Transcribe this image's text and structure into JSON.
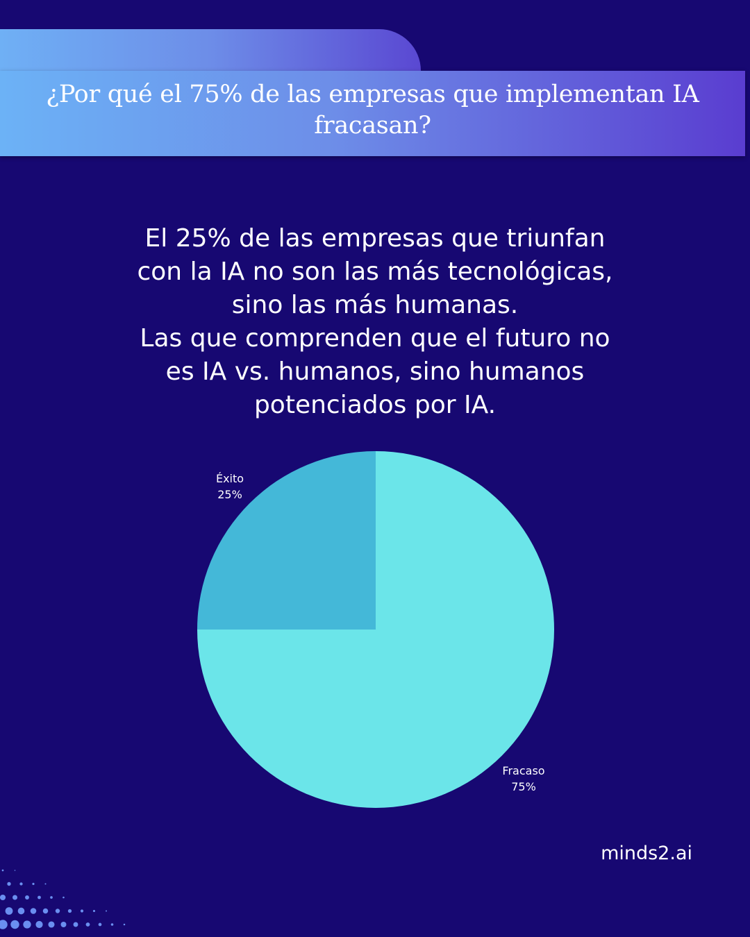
{
  "header": {
    "title": "¿Por qué el 75% de las empresas que implementan IA fracasan?"
  },
  "lead": {
    "lines": [
      "El 25% de las empresas que triunfan",
      "con la IA no son las más tecnológicas,",
      "sino las más humanas.",
      "Las que comprenden que el futuro no",
      "es IA vs. humanos, sino humanos",
      "potenciados por IA."
    ]
  },
  "chart_data": {
    "type": "pie",
    "categories": [
      "Éxito",
      "Fracaso"
    ],
    "values": [
      25,
      75
    ],
    "value_labels": [
      "25%",
      "75%"
    ],
    "colors": [
      "#44b8d8",
      "#6be5e9"
    ]
  },
  "brand": {
    "name": "minds2.ai"
  },
  "colors": {
    "background": "#170872",
    "banner_start": "#6cb2f6",
    "banner_end": "#5a3dd0",
    "dots": "#6a8ff0"
  }
}
